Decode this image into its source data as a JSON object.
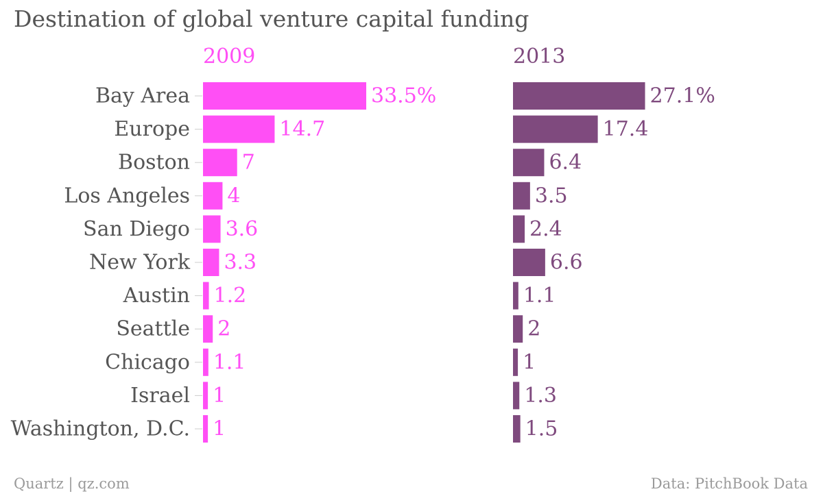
{
  "title": "Destination of global venture capital funding",
  "footer": {
    "source_left": "Quartz | qz.com",
    "source_right": "Data: PitchBook Data"
  },
  "colors": {
    "series_2009": "#ff4ff5",
    "series_2013": "#7f4a7e",
    "label_text": "#555555",
    "footer_text": "#9a9a9a",
    "tick": "#cccccc"
  },
  "chart_data": [
    {
      "type": "bar",
      "orientation": "horizontal",
      "title": "2009",
      "unit": "%",
      "categories": [
        "Bay Area",
        "Europe",
        "Boston",
        "Los Angeles",
        "San Diego",
        "New York",
        "Austin",
        "Seattle",
        "Chicago",
        "Israel",
        "Washington, D.C."
      ],
      "values": [
        33.5,
        14.7,
        7,
        4,
        3.6,
        3.3,
        1.2,
        2,
        1.1,
        1,
        1
      ],
      "labels": [
        "33.5%",
        "14.7",
        "7",
        "4",
        "3.6",
        "3.3",
        "1.2",
        "2",
        "1.1",
        "1",
        "1"
      ],
      "color": "#ff4ff5",
      "xlim": [
        0,
        33.5
      ]
    },
    {
      "type": "bar",
      "orientation": "horizontal",
      "title": "2013",
      "unit": "%",
      "categories": [
        "Bay Area",
        "Europe",
        "Boston",
        "Los Angeles",
        "San Diego",
        "New York",
        "Austin",
        "Seattle",
        "Chicago",
        "Israel",
        "Washington, D.C."
      ],
      "values": [
        27.1,
        17.4,
        6.4,
        3.5,
        2.4,
        6.6,
        1.1,
        2,
        1,
        1.3,
        1.5
      ],
      "labels": [
        "27.1%",
        "17.4",
        "6.4",
        "3.5",
        "2.4",
        "6.6",
        "1.1",
        "2",
        "1",
        "1.3",
        "1.5"
      ],
      "color": "#7f4a7e",
      "xlim": [
        0,
        33.5
      ]
    }
  ]
}
